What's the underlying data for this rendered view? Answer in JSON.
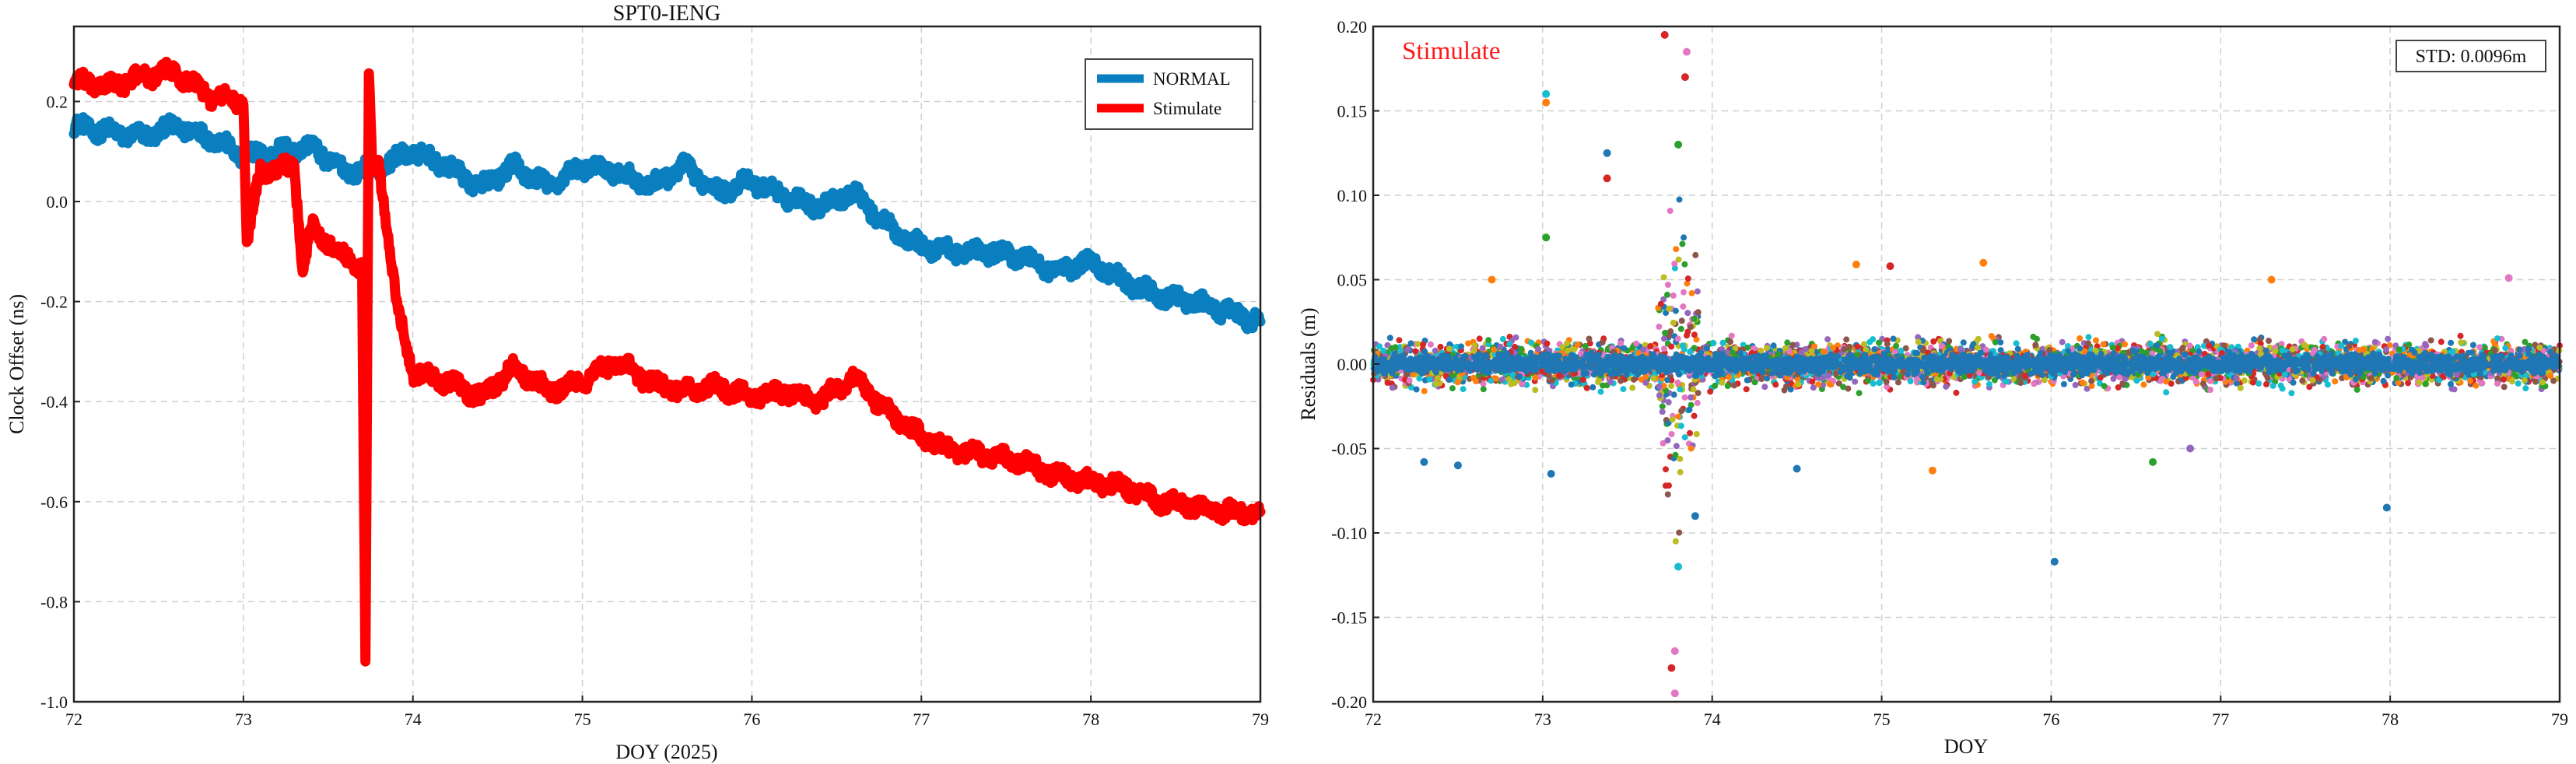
{
  "chart_data": [
    {
      "type": "line",
      "title": "SPT0-IENG",
      "xlabel": "DOY (2025)",
      "ylabel": "Clock Offset (ns)",
      "xlim": [
        72,
        79
      ],
      "ylim": [
        -1.0,
        0.35
      ],
      "xticks": [
        "72",
        "73",
        "74",
        "75",
        "76",
        "77",
        "78",
        "79"
      ],
      "yticks": [
        "-1.0",
        "-0.8",
        "-0.6",
        "-0.4",
        "-0.2",
        "0.0",
        "0.2"
      ],
      "ytick_values": [
        -1.0,
        -0.8,
        -0.6,
        -0.4,
        -0.2,
        0.0,
        0.2
      ],
      "grid": true,
      "legend_position": "top-right",
      "series": [
        {
          "name": "NORMAL",
          "color": "#0a7fbf",
          "x": [
            72.0,
            72.2,
            72.4,
            72.6,
            72.8,
            73.0,
            73.2,
            73.4,
            73.6,
            73.8,
            74.0,
            74.2,
            74.4,
            74.6,
            74.8,
            75.0,
            75.2,
            75.4,
            75.6,
            75.8,
            76.0,
            76.2,
            76.4,
            76.6,
            76.8,
            77.0,
            77.2,
            77.4,
            77.6,
            77.8,
            78.0,
            78.2,
            78.4,
            78.6,
            78.8,
            79.0
          ],
          "y": [
            0.15,
            0.14,
            0.13,
            0.15,
            0.13,
            0.09,
            0.1,
            0.11,
            0.06,
            0.07,
            0.1,
            0.07,
            0.03,
            0.07,
            0.03,
            0.07,
            0.06,
            0.03,
            0.07,
            0.02,
            0.04,
            0.01,
            -0.01,
            0.02,
            -0.05,
            -0.09,
            -0.1,
            -0.1,
            -0.11,
            -0.14,
            -0.12,
            -0.16,
            -0.19,
            -0.2,
            -0.22,
            -0.24
          ]
        },
        {
          "name": "Stimulate",
          "color": "#ff0000",
          "x": [
            72.0,
            72.2,
            72.4,
            72.6,
            72.8,
            73.0,
            73.02,
            73.1,
            73.3,
            73.35,
            73.4,
            73.6,
            73.7,
            73.72,
            73.74,
            73.76,
            73.8,
            73.9,
            74.0,
            74.2,
            74.4,
            74.6,
            74.8,
            75.0,
            75.2,
            75.4,
            75.6,
            75.8,
            76.0,
            76.2,
            76.4,
            76.6,
            76.8,
            77.0,
            77.2,
            77.4,
            77.6,
            77.8,
            78.0,
            78.2,
            78.4,
            78.6,
            78.8,
            79.0
          ],
          "y": [
            0.24,
            0.23,
            0.25,
            0.26,
            0.21,
            0.2,
            -0.08,
            0.06,
            0.07,
            -0.14,
            -0.05,
            -0.11,
            -0.13,
            -0.92,
            0.25,
            0.06,
            0.08,
            -0.2,
            -0.34,
            -0.36,
            -0.39,
            -0.33,
            -0.38,
            -0.36,
            -0.32,
            -0.36,
            -0.38,
            -0.37,
            -0.39,
            -0.38,
            -0.4,
            -0.35,
            -0.42,
            -0.47,
            -0.5,
            -0.51,
            -0.52,
            -0.55,
            -0.56,
            -0.57,
            -0.6,
            -0.61,
            -0.62,
            -0.62
          ]
        }
      ]
    },
    {
      "type": "scatter",
      "title": "",
      "annotation": "Stimulate",
      "annotation_color": "#ff1a1a",
      "stat_label": "STD: 0.0096m",
      "xlabel": "DOY",
      "ylabel": "Residuals (m)",
      "xlim": [
        72,
        79
      ],
      "ylim": [
        -0.2,
        0.2
      ],
      "xticks": [
        "72",
        "73",
        "74",
        "75",
        "76",
        "77",
        "78",
        "79"
      ],
      "yticks": [
        "-0.20",
        "-0.15",
        "-0.10",
        "-0.05",
        "0.00",
        "0.05",
        "0.10",
        "0.15",
        "0.20"
      ],
      "ytick_values": [
        -0.2,
        -0.15,
        -0.1,
        -0.05,
        0.0,
        0.05,
        0.1,
        0.15,
        0.2
      ],
      "grid": true,
      "series_colors": [
        "#1f77b4",
        "#ff7f0e",
        "#2ca02c",
        "#d62728",
        "#9467bd",
        "#8c564b",
        "#e377c2",
        "#7f7f7f",
        "#bcbd22",
        "#17becf"
      ],
      "points": [
        {
          "x": 73.02,
          "y": 0.16,
          "s": 9
        },
        {
          "x": 73.02,
          "y": 0.155,
          "s": 1
        },
        {
          "x": 73.38,
          "y": 0.125,
          "s": 0
        },
        {
          "x": 73.38,
          "y": 0.11,
          "s": 3
        },
        {
          "x": 73.85,
          "y": 0.185,
          "s": 6
        },
        {
          "x": 73.84,
          "y": 0.17,
          "s": 3
        },
        {
          "x": 73.72,
          "y": 0.195,
          "s": 3
        },
        {
          "x": 73.8,
          "y": 0.13,
          "s": 2
        },
        {
          "x": 73.8,
          "y": -0.12,
          "s": 9
        },
        {
          "x": 73.78,
          "y": -0.17,
          "s": 6
        },
        {
          "x": 73.78,
          "y": -0.195,
          "s": 6
        },
        {
          "x": 73.76,
          "y": -0.18,
          "s": 3
        },
        {
          "x": 73.9,
          "y": -0.09,
          "s": 0
        },
        {
          "x": 73.02,
          "y": 0.075,
          "s": 2
        },
        {
          "x": 73.05,
          "y": -0.065,
          "s": 0
        },
        {
          "x": 76.02,
          "y": -0.117,
          "s": 0
        },
        {
          "x": 77.98,
          "y": -0.085,
          "s": 0
        },
        {
          "x": 72.3,
          "y": -0.058,
          "s": 0
        },
        {
          "x": 72.5,
          "y": -0.06,
          "s": 0
        },
        {
          "x": 74.5,
          "y": -0.062,
          "s": 0
        },
        {
          "x": 75.3,
          "y": -0.063,
          "s": 1
        },
        {
          "x": 75.6,
          "y": 0.06,
          "s": 1
        },
        {
          "x": 76.6,
          "y": -0.058,
          "s": 2
        },
        {
          "x": 76.82,
          "y": -0.05,
          "s": 4
        },
        {
          "x": 77.3,
          "y": 0.05,
          "s": 1
        },
        {
          "x": 78.7,
          "y": 0.051,
          "s": 6
        },
        {
          "x": 72.7,
          "y": 0.05,
          "s": 1
        },
        {
          "x": 74.85,
          "y": 0.059,
          "s": 1
        },
        {
          "x": 75.05,
          "y": 0.058,
          "s": 3
        }
      ]
    }
  ],
  "legend": {
    "normal_label": "NORMAL",
    "stimulate_label": "Stimulate"
  }
}
